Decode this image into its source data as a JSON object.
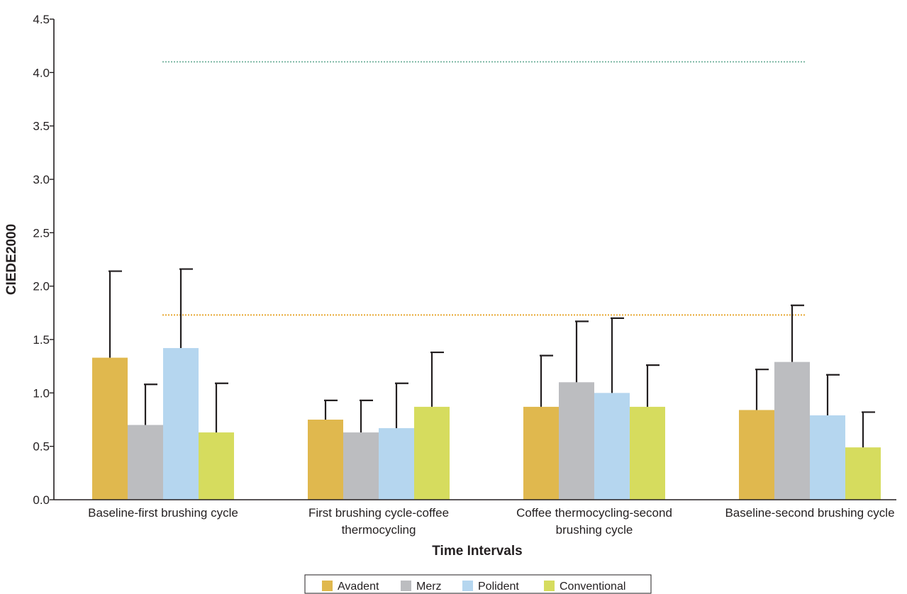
{
  "chart_data": {
    "type": "bar",
    "xlabel": "Time Intervals",
    "ylabel": "CIEDE2000",
    "ylim": [
      0,
      4.5
    ],
    "yticks": [
      "0.0",
      "0.5",
      "1.0",
      "1.5",
      "2.0",
      "2.5",
      "3.0",
      "3.5",
      "4.0",
      "4.5"
    ],
    "categories": [
      [
        "Baseline-first brushing cycle"
      ],
      [
        "First brushing cycle-coffee",
        "thermocycling"
      ],
      [
        "Coffee thermocycling-second",
        "brushing cycle"
      ],
      [
        "Baseline-second brushing cycle"
      ]
    ],
    "series": [
      {
        "name": "Avadent",
        "color": "#e0b84e",
        "values": [
          1.33,
          0.75,
          0.87,
          0.84
        ],
        "errors": [
          0.81,
          0.18,
          0.48,
          0.38
        ]
      },
      {
        "name": "Merz",
        "color": "#bcbdc0",
        "values": [
          0.7,
          0.63,
          1.1,
          1.29
        ],
        "errors": [
          0.38,
          0.3,
          0.57,
          0.53
        ]
      },
      {
        "name": "Polident",
        "color": "#b5d6ef",
        "values": [
          1.42,
          0.67,
          1.0,
          0.79
        ],
        "errors": [
          0.74,
          0.42,
          0.7,
          0.38
        ]
      },
      {
        "name": "Conventional",
        "color": "#d6dc5e",
        "values": [
          0.63,
          0.87,
          0.87,
          0.49
        ],
        "errors": [
          0.46,
          0.51,
          0.39,
          0.33
        ]
      }
    ],
    "reference_lines": [
      {
        "value": 4.1,
        "color": "#7fb9a6",
        "style": "dotted",
        "span_categories": "all"
      },
      {
        "value": 1.73,
        "color": "#e8a934",
        "style": "dotted",
        "span_categories": "all"
      }
    ],
    "grid": false,
    "legend_position": "bottom-center"
  }
}
